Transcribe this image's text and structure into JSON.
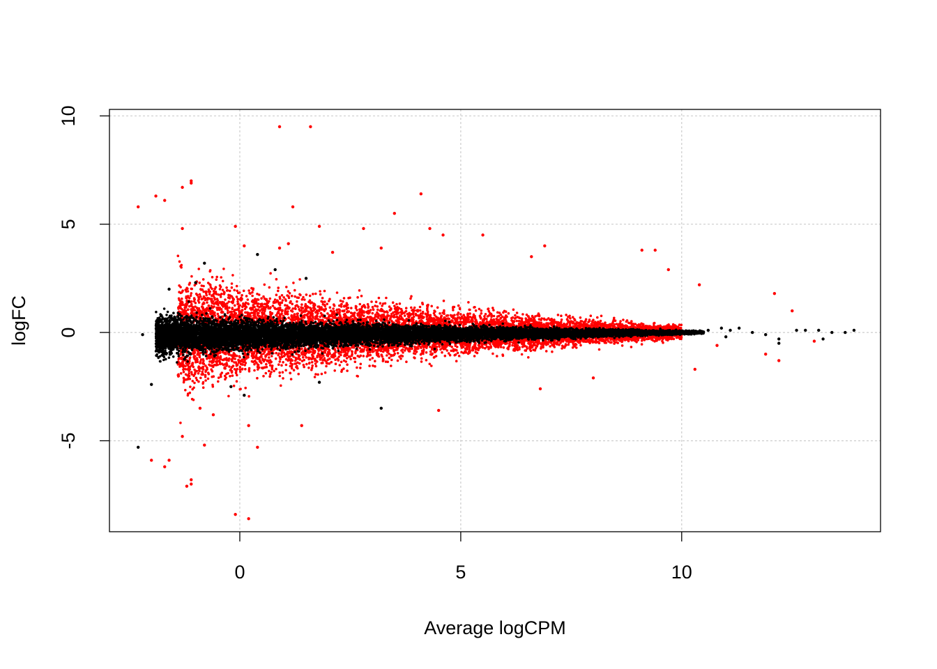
{
  "chart_data": {
    "type": "scatter",
    "title": "",
    "xlabel": "Average logCPM",
    "ylabel": "logFC",
    "xlim": [
      -2.95,
      14.5
    ],
    "ylim": [
      -9.2,
      10.3
    ],
    "xticks": [
      0,
      5,
      10
    ],
    "yticks": [
      -5,
      0,
      5,
      10
    ],
    "grid": true,
    "legend": "none",
    "colors": {
      "significant": "#ff0000",
      "not_significant": "#000000",
      "grid": "#cccccc"
    },
    "series": [
      {
        "key": "significant",
        "color": "#ff0000",
        "points": [
          [
            -2.3,
            5.8
          ],
          [
            -1.9,
            6.3
          ],
          [
            -1.7,
            6.1
          ],
          [
            -1.3,
            6.7
          ],
          [
            -1.1,
            7.0
          ],
          [
            -1.1,
            6.9
          ],
          [
            0.9,
            9.5
          ],
          [
            1.6,
            9.5
          ],
          [
            1.2,
            5.8
          ],
          [
            4.1,
            6.4
          ],
          [
            3.5,
            5.5
          ],
          [
            -0.1,
            4.9
          ],
          [
            1.8,
            4.9
          ],
          [
            2.8,
            4.8
          ],
          [
            4.3,
            4.8
          ],
          [
            4.6,
            4.5
          ],
          [
            5.5,
            4.5
          ],
          [
            -1.3,
            4.8
          ],
          [
            9.1,
            3.8
          ],
          [
            9.4,
            3.8
          ],
          [
            6.9,
            4.0
          ],
          [
            0.1,
            4.0
          ],
          [
            0.9,
            3.9
          ],
          [
            1.1,
            4.1
          ],
          [
            3.2,
            3.9
          ],
          [
            2.1,
            3.7
          ],
          [
            6.6,
            3.5
          ],
          [
            9.7,
            2.9
          ],
          [
            -1.6,
            -5.9
          ],
          [
            -2.0,
            -5.9
          ],
          [
            -1.7,
            -6.2
          ],
          [
            -1.1,
            -7.0
          ],
          [
            -1.2,
            -7.1
          ],
          [
            -1.1,
            -6.8
          ],
          [
            -0.1,
            -8.4
          ],
          [
            0.2,
            -8.6
          ],
          [
            -0.8,
            -5.2
          ],
          [
            0.4,
            -5.3
          ],
          [
            0.2,
            -4.3
          ],
          [
            1.4,
            -4.3
          ],
          [
            -1.3,
            -4.8
          ],
          [
            4.5,
            -3.6
          ],
          [
            12.1,
            1.8
          ],
          [
            12.5,
            1.0
          ],
          [
            12.2,
            -1.3
          ],
          [
            11.9,
            -1.0
          ],
          [
            13.0,
            -0.4
          ],
          [
            10.8,
            -0.6
          ],
          [
            10.3,
            -1.7
          ],
          [
            10.4,
            2.2
          ],
          [
            6.8,
            -2.6
          ],
          [
            8.0,
            -2.1
          ],
          [
            -0.9,
            -3.5
          ],
          [
            -0.6,
            -3.8
          ]
        ],
        "band": {
          "x_range": [
            -1.4,
            10.0
          ],
          "spread_start": 2.4,
          "spread_end": 0.25,
          "count": 6500
        }
      },
      {
        "key": "not_significant",
        "color": "#000000",
        "points": [
          [
            -2.3,
            -5.3
          ],
          [
            -2.2,
            -0.1
          ],
          [
            -2.0,
            -2.4
          ],
          [
            0.4,
            3.6
          ],
          [
            3.2,
            -3.5
          ],
          [
            -0.8,
            3.2
          ],
          [
            0.8,
            2.9
          ],
          [
            1.5,
            2.5
          ],
          [
            -1.0,
            2.3
          ],
          [
            -1.6,
            2.0
          ],
          [
            10.3,
            0.0
          ],
          [
            10.9,
            0.2
          ],
          [
            11.1,
            0.1
          ],
          [
            11.3,
            0.2
          ],
          [
            11.6,
            0.0
          ],
          [
            11.9,
            -0.1
          ],
          [
            12.2,
            -0.5
          ],
          [
            12.6,
            0.1
          ],
          [
            12.8,
            0.1
          ],
          [
            13.1,
            0.1
          ],
          [
            13.4,
            0.0
          ],
          [
            13.7,
            0.0
          ],
          [
            13.9,
            0.1
          ],
          [
            10.6,
            0.1
          ],
          [
            11.0,
            -0.2
          ],
          [
            12.2,
            -0.3
          ],
          [
            13.2,
            -0.3
          ],
          [
            0.1,
            -2.9
          ],
          [
            -0.2,
            -2.5
          ],
          [
            1.8,
            -2.3
          ]
        ],
        "band": {
          "x_range": [
            -1.9,
            10.5
          ],
          "spread_start": 1.0,
          "spread_end": 0.06,
          "count": 14000
        }
      }
    ]
  }
}
